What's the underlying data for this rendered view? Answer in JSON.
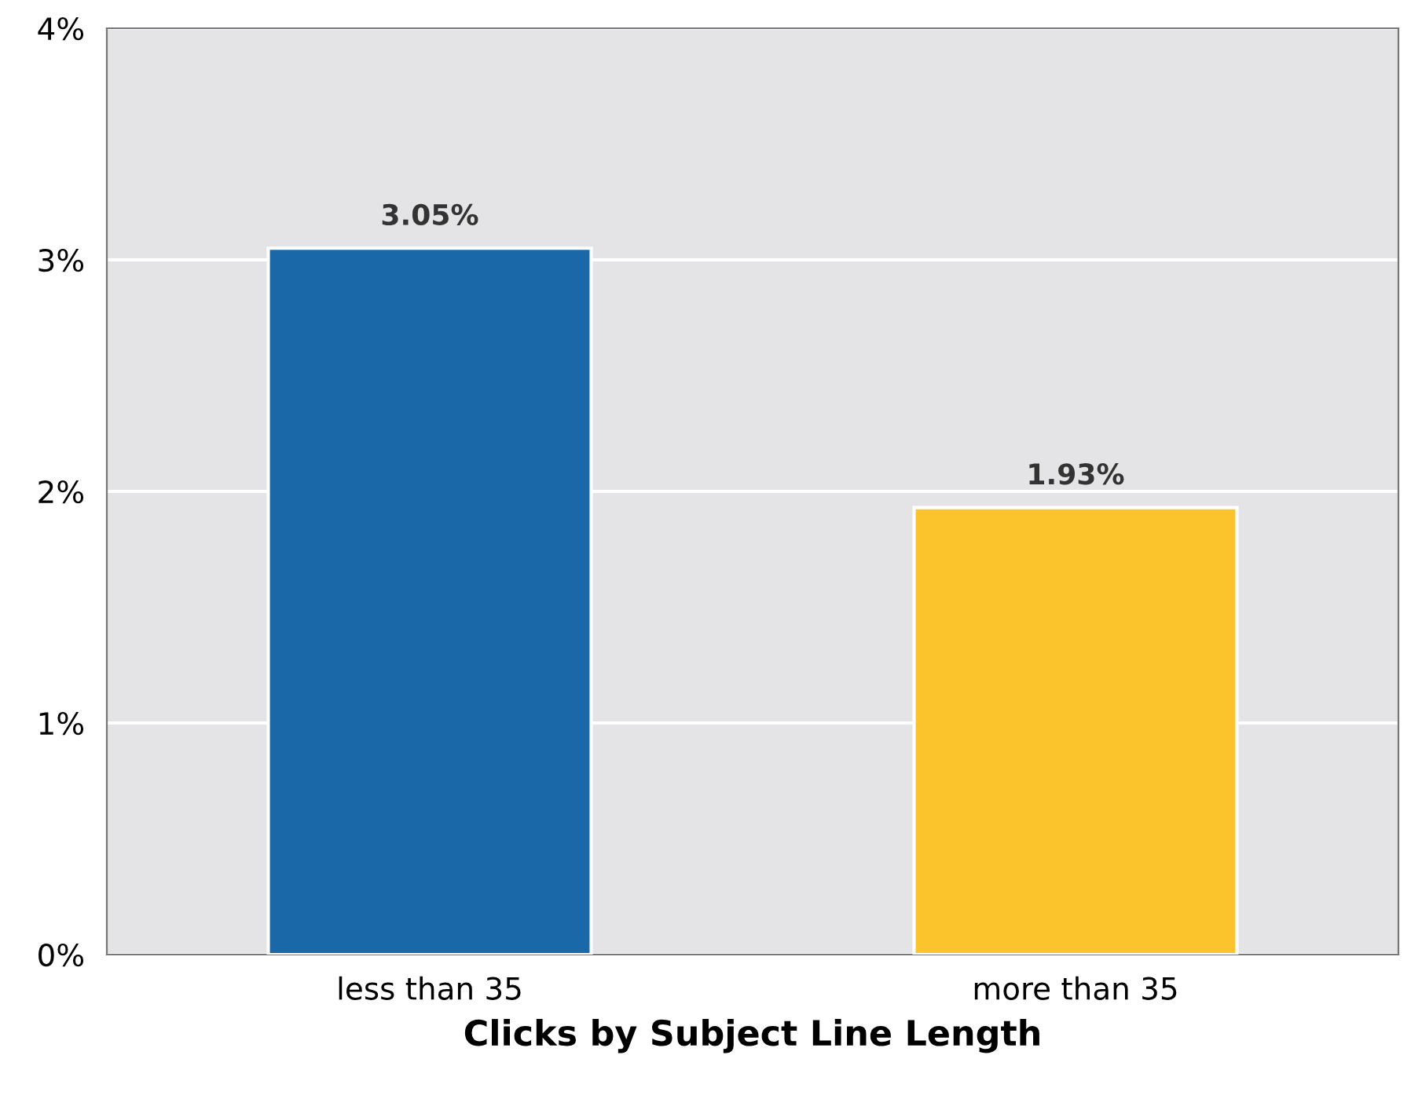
{
  "chart_data": {
    "type": "bar",
    "xlabel": "Clicks by Subject Line Length",
    "categories": [
      "less than 35",
      "more than 35"
    ],
    "values": [
      3.05,
      1.93
    ],
    "colors": [
      "#1a68a8",
      "#fcc42c"
    ],
    "value_labels": [
      "3.05%",
      "1.93%"
    ],
    "ylim": [
      0,
      4
    ],
    "yticks": [
      {
        "value": 0,
        "label": "0%"
      },
      {
        "value": 1,
        "label": "1%"
      },
      {
        "value": 2,
        "label": "2%"
      },
      {
        "value": 3,
        "label": "3%"
      },
      {
        "value": 4,
        "label": "4%"
      }
    ],
    "grid": "y",
    "legend": false
  }
}
